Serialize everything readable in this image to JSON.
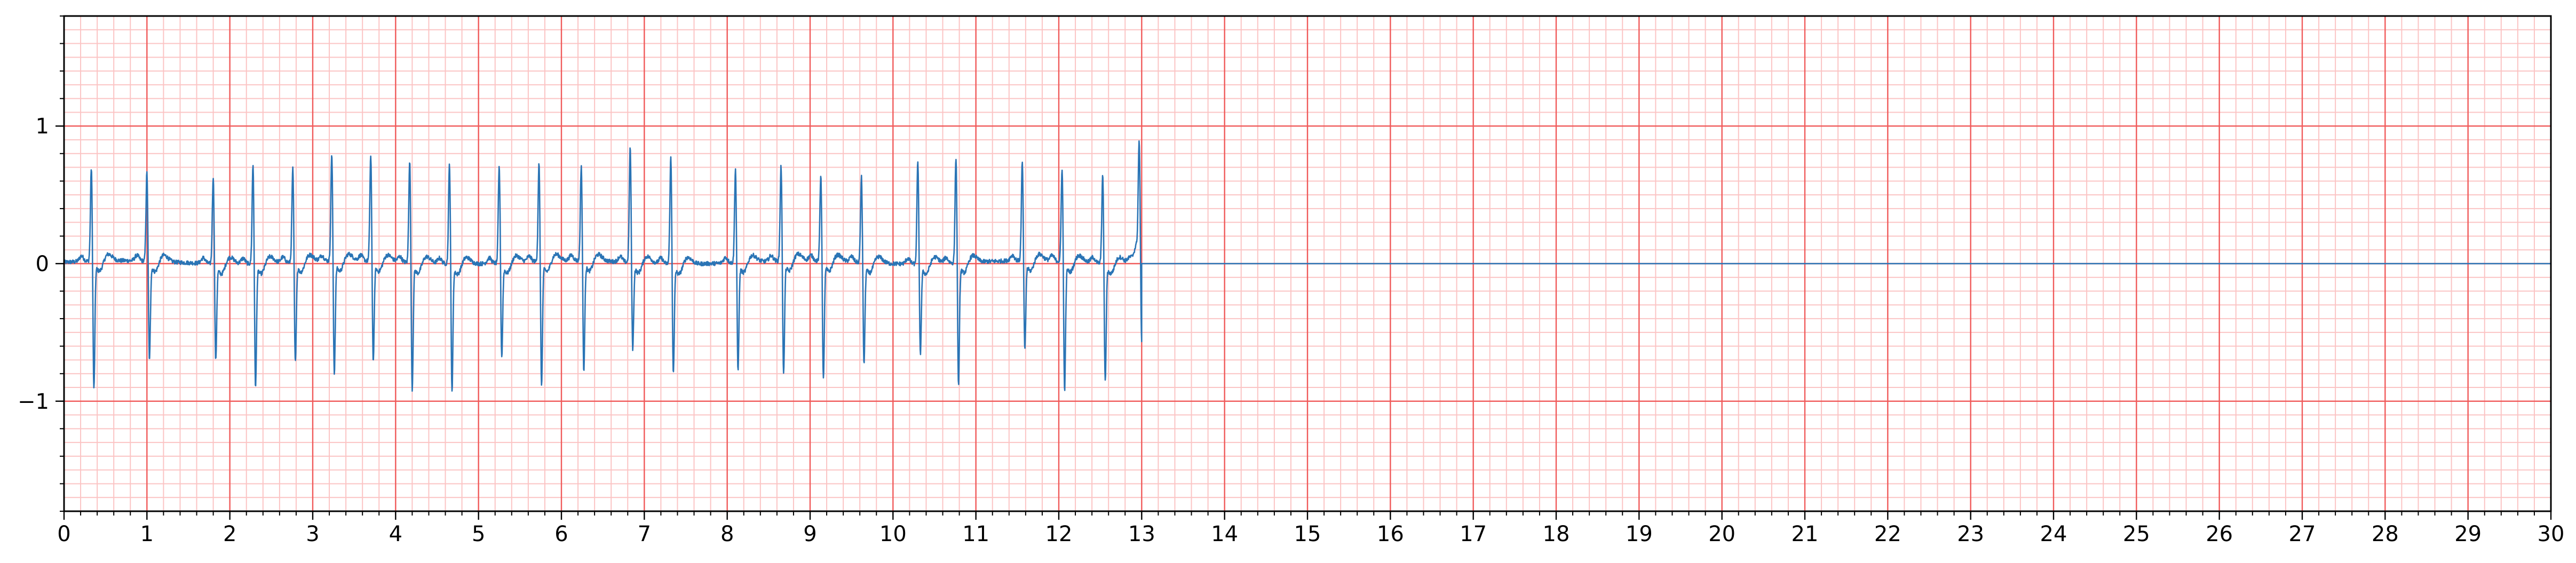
{
  "chart_data": {
    "type": "line",
    "title": "",
    "xlabel": "",
    "ylabel": "",
    "xlim": [
      0,
      30
    ],
    "ylim": [
      -1.8,
      1.8
    ],
    "x_ticks": [
      0,
      1,
      2,
      3,
      4,
      5,
      6,
      7,
      8,
      9,
      10,
      11,
      12,
      13,
      14,
      15,
      16,
      17,
      18,
      19,
      20,
      21,
      22,
      23,
      24,
      25,
      26,
      27,
      28,
      29,
      30
    ],
    "x_tick_labels": [
      "0",
      "1",
      "2",
      "3",
      "4",
      "5",
      "6",
      "7",
      "8",
      "9",
      "10",
      "11",
      "12",
      "13",
      "14",
      "15",
      "16",
      "17",
      "18",
      "19",
      "20",
      "21",
      "22",
      "23",
      "24",
      "25",
      "26",
      "27",
      "28",
      "29",
      "30"
    ],
    "y_ticks": [
      -1,
      0,
      1
    ],
    "y_tick_labels": [
      "−1",
      "0",
      "1"
    ],
    "grid": {
      "major": {
        "x_step": 1,
        "y_step": 1
      },
      "minor": {
        "x_step": 0.2,
        "y_step": 0.1
      }
    },
    "colors": {
      "major_grid": "#f05a5a",
      "minor_grid": "#fbc4c4",
      "line": "#2a74b5",
      "axis": "#000000"
    },
    "series": [
      {
        "name": "",
        "signal_end": 13.0,
        "flat_value": 0,
        "peaks": [
          {
            "t": 0.33,
            "r": 0.7,
            "s": -0.93
          },
          {
            "t": 1.0,
            "r": 0.66,
            "s": -0.72
          },
          {
            "t": 1.8,
            "r": 0.65,
            "s": -0.7
          },
          {
            "t": 2.28,
            "r": 0.74,
            "s": -0.9
          },
          {
            "t": 2.76,
            "r": 0.7,
            "s": -0.73
          },
          {
            "t": 3.23,
            "r": 0.8,
            "s": -0.82
          },
          {
            "t": 3.7,
            "r": 0.78,
            "s": -0.73
          },
          {
            "t": 4.17,
            "r": 0.76,
            "s": -0.92
          },
          {
            "t": 4.65,
            "r": 0.75,
            "s": -0.92
          },
          {
            "t": 5.25,
            "r": 0.72,
            "s": -0.68
          },
          {
            "t": 5.73,
            "r": 0.73,
            "s": -0.9
          },
          {
            "t": 6.24,
            "r": 0.71,
            "s": -0.8
          },
          {
            "t": 6.83,
            "r": 0.85,
            "s": -0.63
          },
          {
            "t": 7.32,
            "r": 0.79,
            "s": -0.8
          },
          {
            "t": 8.1,
            "r": 0.7,
            "s": -0.78
          },
          {
            "t": 8.65,
            "r": 0.71,
            "s": -0.82
          },
          {
            "t": 9.13,
            "r": 0.65,
            "s": -0.86
          },
          {
            "t": 9.62,
            "r": 0.64,
            "s": -0.73
          },
          {
            "t": 10.3,
            "r": 0.76,
            "s": -0.65
          },
          {
            "t": 10.76,
            "r": 0.79,
            "s": -0.88
          },
          {
            "t": 11.56,
            "r": 0.73,
            "s": -0.65
          },
          {
            "t": 12.04,
            "r": 0.7,
            "s": -0.93
          },
          {
            "t": 12.53,
            "r": 0.66,
            "s": -0.86
          },
          {
            "t": 12.97,
            "r": 0.78,
            "s": -0.65
          }
        ]
      }
    ]
  }
}
